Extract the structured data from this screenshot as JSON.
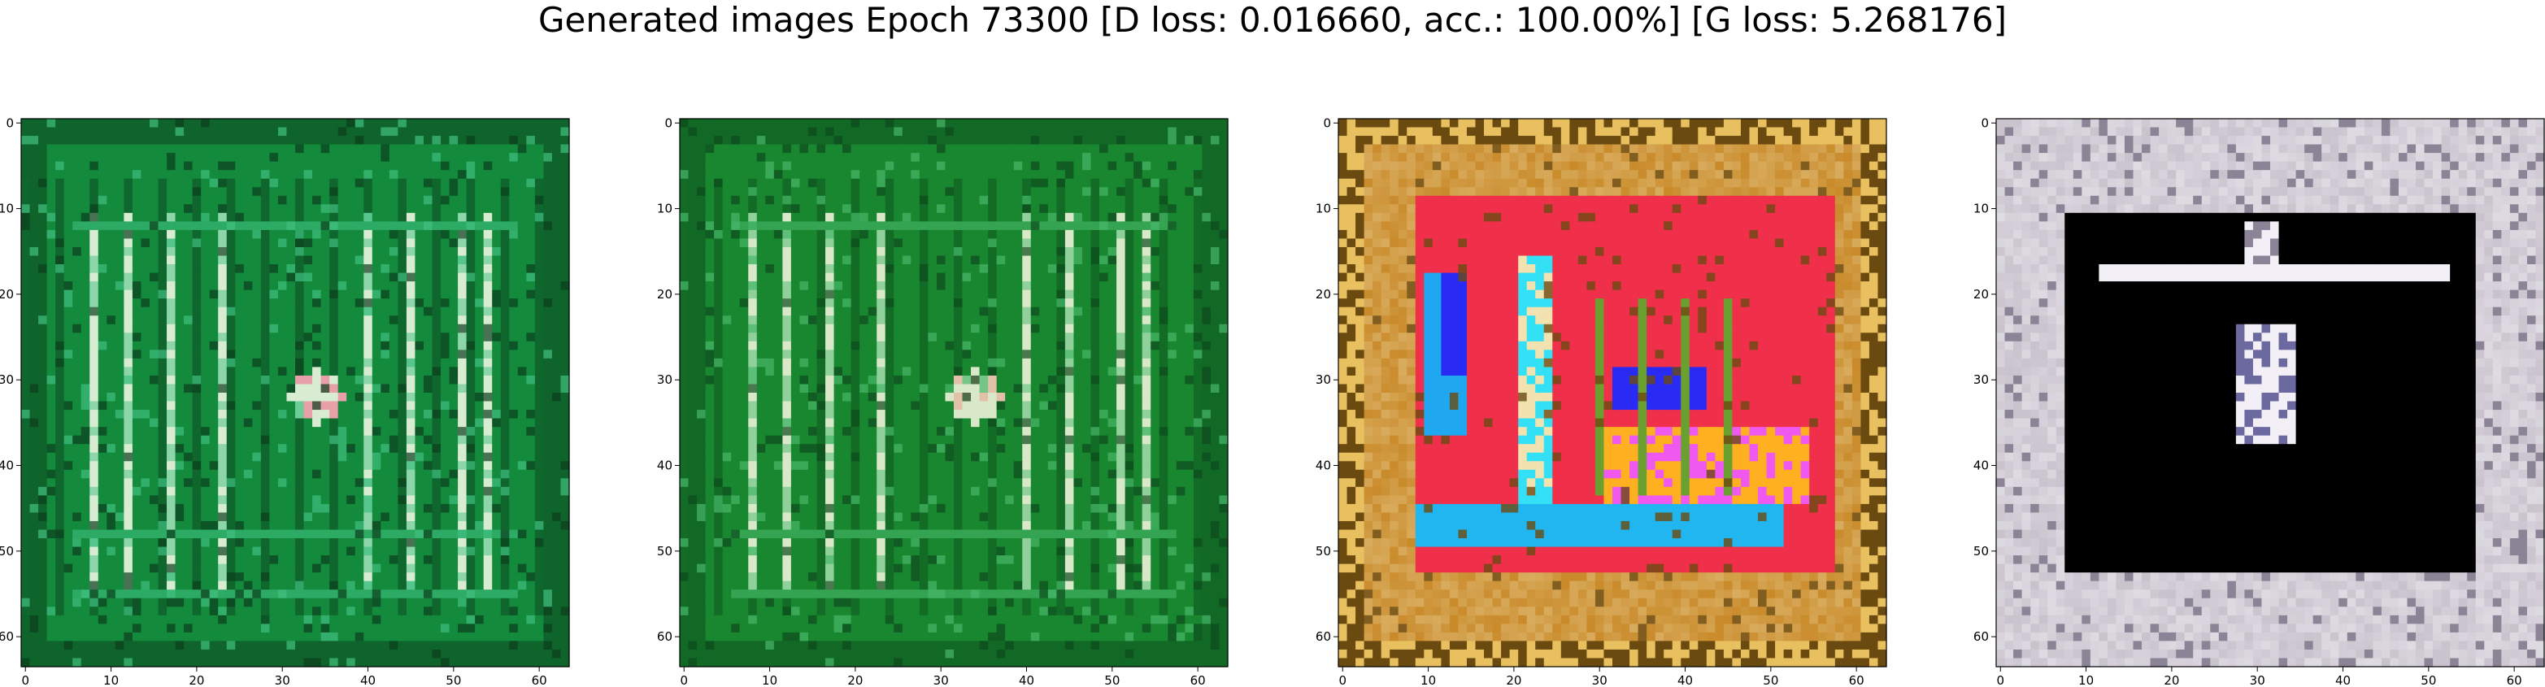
{
  "figure": {
    "title": "Generated images Epoch 73300 [D loss: 0.016660, acc.: 100.00%] [G loss: 5.268176]"
  },
  "panels": [
    {
      "id": "sample-1",
      "palette": "green",
      "motif": "stripes-blob",
      "colors": {
        "base": "#138a3c",
        "dark": "#0a3d1c",
        "light": "#d8ecd2",
        "accent": "#3fbf7f",
        "hot": "#e8a0a8"
      }
    },
    {
      "id": "sample-2",
      "palette": "green",
      "motif": "stripes-blob",
      "colors": {
        "base": "#18872f",
        "dark": "#0c4a1c",
        "light": "#d9e8c9",
        "accent": "#47b86a",
        "hot": "#e3c0a8"
      }
    },
    {
      "id": "sample-3",
      "palette": "multicolor",
      "motif": "red-frame-blocks",
      "colors": {
        "base": "#f02f4a",
        "dark": "#6b4a10",
        "light": "#f2e2b0",
        "accent": "#1fa8f0",
        "hot": "#2a2af5"
      }
    },
    {
      "id": "sample-4",
      "palette": "grey",
      "motif": "dark-window",
      "colors": {
        "base": "#c8c2cc",
        "dark": "#000000",
        "light": "#f2f0f6",
        "accent": "#8a8496",
        "hot": "#ffffff"
      }
    }
  ],
  "axes": {
    "x_ticks": [
      "0",
      "10",
      "20",
      "30",
      "40",
      "50",
      "60"
    ],
    "y_ticks": [
      "0",
      "10",
      "20",
      "30",
      "40",
      "50",
      "60"
    ],
    "image_size": 64
  }
}
